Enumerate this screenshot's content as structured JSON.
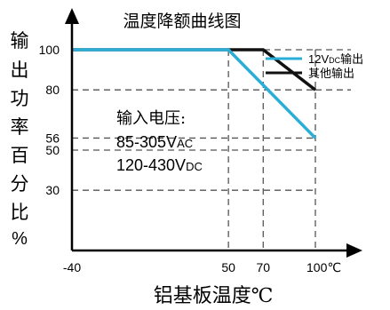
{
  "chart_data": {
    "type": "line",
    "title": "温度降额曲线图",
    "xlabel": "铝基板温度℃",
    "ylabel_chars": [
      "输",
      "出",
      "功",
      "率",
      "百",
      "分",
      "比",
      "%"
    ],
    "x_ticks": [
      {
        "value": -40,
        "label": "-40"
      },
      {
        "value": 50,
        "label": "50"
      },
      {
        "value": 70,
        "label": "70"
      },
      {
        "value": 100,
        "label": "100℃"
      }
    ],
    "y_ticks": [
      30,
      50,
      56,
      80,
      100
    ],
    "xlim": [
      -40,
      100
    ],
    "ylim": [
      0,
      100
    ],
    "series": [
      {
        "name": "12VDC输出",
        "color": "#2aaed8",
        "x": [
          -40,
          50,
          100
        ],
        "y": [
          100,
          100,
          56
        ]
      },
      {
        "name": "其他输出",
        "color": "#111111",
        "x": [
          -40,
          70,
          100
        ],
        "y": [
          100,
          100,
          80
        ]
      }
    ],
    "legend": [
      {
        "text": "12VDC输出",
        "base": "12V",
        "sub": "DC",
        "suffix": "输出",
        "color": "#2aaed8"
      },
      {
        "text": "其他输出",
        "base": "其他输出",
        "sub": "",
        "suffix": "",
        "color": "#111111"
      }
    ],
    "annotation": {
      "heading": "输入电压:",
      "lines": [
        {
          "base": "85-305V",
          "sub": "AC"
        },
        {
          "base": "120-430V",
          "sub": "DC"
        }
      ]
    },
    "grid": "dashed guide lines at tick values"
  }
}
